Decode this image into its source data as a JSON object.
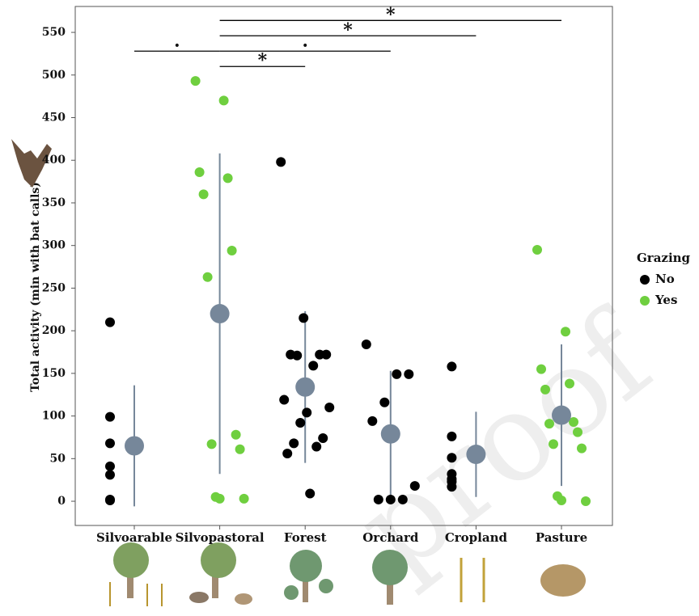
{
  "chart_data": {
    "type": "strip",
    "y_label": "Total activity (min with bat calls)",
    "categories": [
      "Silvoarable",
      "Silvopastoral",
      "Forest",
      "Orchard",
      "Cropland",
      "Pasture"
    ],
    "legend_title": "Grazing",
    "series": [
      {
        "name": "No",
        "color": "#000000",
        "values": [
          [
            210,
            99,
            68,
            41,
            31,
            2,
            1
          ],
          [],
          [
            398,
            215,
            172,
            171,
            172,
            172,
            159,
            119,
            104,
            110,
            92,
            74,
            68,
            64,
            56,
            9
          ],
          [
            184,
            149,
            149,
            116,
            94,
            18,
            2,
            2,
            2
          ],
          [
            158,
            76,
            51,
            32,
            26,
            23,
            17
          ],
          []
        ]
      },
      {
        "name": "Yes",
        "color": "#6fcf3f",
        "values": [
          [],
          [
            493,
            470,
            386,
            379,
            360,
            294,
            263,
            78,
            67,
            61,
            5,
            3,
            3
          ],
          [],
          [],
          [],
          [
            295,
            199,
            155,
            138,
            131,
            93,
            91,
            81,
            67,
            62,
            6,
            0,
            1
          ]
        ]
      }
    ],
    "means": [
      65,
      220,
      134,
      79,
      55,
      101
    ],
    "sd": [
      71,
      188,
      89,
      74,
      50,
      83
    ],
    "mean_color": "#76879a",
    "comparisons": [
      {
        "from": 0,
        "to": 1,
        "y": 528,
        "label": "·"
      },
      {
        "from": 1,
        "to": 2,
        "y": 510,
        "label": "*"
      },
      {
        "from": 1,
        "to": 3,
        "y": 528,
        "label": "·"
      },
      {
        "from": 1,
        "to": 4,
        "y": 546,
        "label": "*"
      },
      {
        "from": 1,
        "to": 5,
        "y": 564,
        "label": "*"
      }
    ],
    "ylim": [
      -28.4,
      580.4
    ],
    "yticks": [
      0,
      50,
      100,
      150,
      200,
      250,
      300,
      350,
      400,
      450,
      500,
      550
    ],
    "watermark": "proof"
  }
}
